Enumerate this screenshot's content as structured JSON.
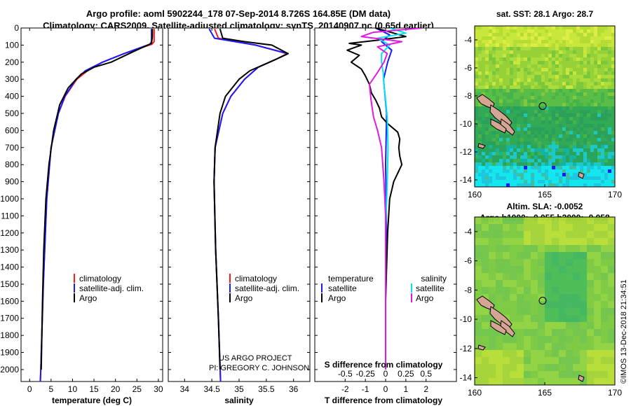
{
  "header": {
    "line1": "Argo profile: aoml 5902244_178 07-Sep-2014 8.726S 164.85E (DM data)",
    "line2": "Climatology: CARS2009. Satellite-adjusted climatology: synTS_20140907.nc (0.65d earlier)"
  },
  "footer": {
    "project": "US ARGO PROJECT",
    "pi": "PI: GREGORY C. JOHNSON",
    "stamp": "©IMOS 13-Dec-2018 21:34:51"
  },
  "colors": {
    "climatology": "#ff1a1a",
    "satellite": "#1a1aff",
    "argo": "#000000",
    "cyan": "#00e5ee",
    "magenta": "#e01ae0"
  },
  "chart_data": [
    {
      "type": "line",
      "title": "",
      "xlabel": "temperature (deg C)",
      "ylabel": "",
      "xlim": [
        -2,
        31
      ],
      "ylim": [
        2070,
        0
      ],
      "y_inverted": true,
      "x_ticks": [
        0,
        5,
        10,
        15,
        20,
        25,
        30
      ],
      "y_ticks": [
        0,
        100,
        200,
        300,
        400,
        500,
        600,
        700,
        800,
        900,
        1000,
        1100,
        1200,
        1300,
        1400,
        1500,
        1600,
        1700,
        1800,
        1900,
        2000
      ],
      "legend": {
        "position": "lower-center",
        "entries": [
          "climatology",
          "satellite-adj. clim.",
          "Argo"
        ]
      },
      "series": [
        {
          "name": "climatology",
          "color": "#ff1a1a",
          "y": [
            5,
            80,
            95,
            150,
            200,
            250,
            300,
            400,
            500,
            700,
            1000,
            1500,
            2000,
            2070
          ],
          "x": [
            29,
            29,
            28.5,
            22,
            17,
            13.5,
            11,
            8.3,
            6.7,
            5,
            4,
            3.2,
            2.6,
            2.5
          ]
        },
        {
          "name": "satellite-adj. clim.",
          "color": "#1a1aff",
          "y": [
            5,
            80,
            95,
            150,
            200,
            250,
            300,
            400,
            500,
            700,
            1000,
            1500,
            2000,
            2070
          ],
          "x": [
            28.4,
            28.4,
            28,
            22,
            17,
            13,
            10.8,
            8.2,
            6.7,
            5,
            4,
            3.2,
            2.6,
            2.5
          ]
        },
        {
          "name": "Argo",
          "color": "#000000",
          "y": [
            5,
            50,
            90,
            140,
            200,
            230,
            270,
            310,
            350,
            450,
            600,
            800,
            1000,
            1300,
            1600,
            2000
          ],
          "x": [
            28.6,
            28.6,
            28.4,
            24,
            19,
            15,
            12,
            10.5,
            9,
            7,
            5.6,
            4.5,
            3.8,
            3.3,
            3,
            2.7
          ]
        }
      ]
    },
    {
      "type": "line",
      "title": "",
      "xlabel": "salinity",
      "ylabel": "",
      "xlim": [
        33.7,
        36.3
      ],
      "ylim": [
        2070,
        0
      ],
      "y_inverted": true,
      "x_ticks": [
        34,
        34.5,
        35,
        35.5,
        36
      ],
      "x_tick_labels": [
        "34",
        "34.5",
        "35",
        "35.5",
        "36"
      ],
      "legend": {
        "position": "lower-center",
        "entries": [
          "climatology",
          "satellite-adj. clim.",
          "Argo"
        ]
      },
      "series": [
        {
          "name": "climatology",
          "color": "#ff1a1a",
          "y": [
            5,
            60,
            100,
            150,
            180,
            230,
            300,
            400,
            500,
            700,
            900,
            1300,
            1700,
            2070
          ],
          "x": [
            34.55,
            34.62,
            35.3,
            35.88,
            35.7,
            35.35,
            35.1,
            34.85,
            34.7,
            34.56,
            34.54,
            34.57,
            34.62,
            34.66
          ]
        },
        {
          "name": "satellite-adj. clim.",
          "color": "#1a1aff",
          "y": [
            5,
            60,
            100,
            150,
            180,
            230,
            300,
            400,
            500,
            700,
            900,
            1300,
            1700,
            2070
          ],
          "x": [
            34.45,
            34.55,
            35.3,
            35.9,
            35.7,
            35.35,
            35.1,
            34.85,
            34.7,
            34.56,
            34.54,
            34.57,
            34.62,
            34.66
          ]
        },
        {
          "name": "Argo",
          "color": "#000000",
          "y": [
            5,
            60,
            80,
            100,
            150,
            180,
            250,
            300,
            400,
            500,
            700,
            900,
            1300,
            1700,
            2000
          ],
          "x": [
            34.65,
            34.7,
            35.1,
            35.6,
            35.9,
            35.7,
            35.2,
            35.0,
            34.75,
            34.65,
            34.56,
            34.54,
            34.57,
            34.62,
            34.65
          ]
        }
      ]
    },
    {
      "type": "line",
      "title": "",
      "xlabel": "T difference from climatology",
      "xlabel2": "S difference from climatology",
      "xlim": [
        -3.5,
        3.5
      ],
      "ylim": [
        2070,
        0
      ],
      "y_inverted": true,
      "x_ticks": [
        -2,
        -1,
        0,
        1,
        2
      ],
      "x_tick_labels": [
        "-2",
        "-1",
        "0",
        "1",
        "2"
      ],
      "s_ticks": [
        -0.5,
        -0.25,
        0,
        0.25,
        0.5
      ],
      "s_tick_labels": [
        "-0.5",
        "-0.25",
        "0",
        "0.25",
        "0.5"
      ],
      "legend_left_title": "temperature",
      "legend_right_title": "salinity",
      "legend_left": [
        "satellite",
        "Argo"
      ],
      "legend_right": [
        "satellite",
        "Argo"
      ],
      "series": [
        {
          "name": "T satellite",
          "color": "#1a1aff",
          "y": [
            0,
            40,
            80,
            130,
            200,
            300,
            500,
            800,
            1200,
            1600,
            2000
          ],
          "x": [
            -0.5,
            0.2,
            -0.2,
            0.3,
            0.1,
            -0.1,
            0.05,
            0,
            0.05,
            0,
            0
          ]
        },
        {
          "name": "T Argo",
          "color": "#000000",
          "y": [
            0,
            50,
            70,
            90,
            100,
            130,
            160,
            200,
            240,
            280,
            330,
            380,
            420,
            470,
            520,
            560,
            610,
            650,
            700,
            750,
            800,
            850,
            900,
            950,
            1000,
            1200,
            1400,
            1600,
            1800,
            2000
          ],
          "x": [
            -0.5,
            1,
            -0.3,
            -1.8,
            -1.2,
            -1.9,
            -1.3,
            -1.7,
            -1.2,
            -1.0,
            -0.8,
            -0.7,
            -0.5,
            -0.3,
            -0.2,
            0.1,
            0.6,
            0.7,
            0.65,
            0.7,
            0.8,
            0.6,
            0.4,
            0.3,
            0.2,
            0.1,
            0.05,
            0.0,
            0.0,
            0.0
          ]
        },
        {
          "name": "S satellite",
          "color": "#00e5ee",
          "y": [
            0,
            30,
            60,
            100,
            150,
            200,
            260,
            330,
            420,
            520,
            700,
            900,
            1200,
            1600,
            2000
          ],
          "x": [
            0.05,
            0.25,
            -0.1,
            0.05,
            -0.05,
            -0.05,
            -0.03,
            -0.02,
            0.0,
            0.02,
            0.03,
            0.02,
            0.0,
            0.0,
            0.0
          ]
        },
        {
          "name": "S Argo",
          "color": "#e01ae0",
          "y": [
            0,
            25,
            50,
            80,
            110,
            150,
            200,
            260,
            330,
            420,
            520,
            600,
            700,
            900,
            1100,
            1400,
            1700,
            2000
          ],
          "x": [
            0.45,
            -0.15,
            -0.3,
            0.2,
            -0.1,
            0.02,
            -0.02,
            -0.1,
            -0.2,
            -0.18,
            -0.15,
            -0.1,
            -0.05,
            -0.02,
            0.0,
            0.0,
            0.0,
            0.0
          ]
        }
      ]
    },
    {
      "type": "heatmap",
      "title": "sat. SST: 28.1 Argo: 28.7",
      "xlim": [
        160,
        170
      ],
      "ylim": [
        -14.5,
        -3
      ],
      "x_ticks": [
        160,
        165,
        170
      ],
      "y_ticks": [
        -4,
        -6,
        -8,
        -10,
        -12,
        -14
      ],
      "marker": {
        "lon": 164.85,
        "lat": -8.726
      }
    },
    {
      "type": "heatmap",
      "title": "Altim. SLA: -0.0052",
      "subtitle": "Argo h1000: -0.055 h2000: -0.058",
      "xlim": [
        160,
        170
      ],
      "ylim": [
        -14.5,
        -3
      ],
      "x_ticks": [
        160,
        165,
        170
      ],
      "y_ticks": [
        -4,
        -6,
        -8,
        -10,
        -12,
        -14
      ],
      "marker": {
        "lon": 164.85,
        "lat": -8.726
      }
    }
  ]
}
